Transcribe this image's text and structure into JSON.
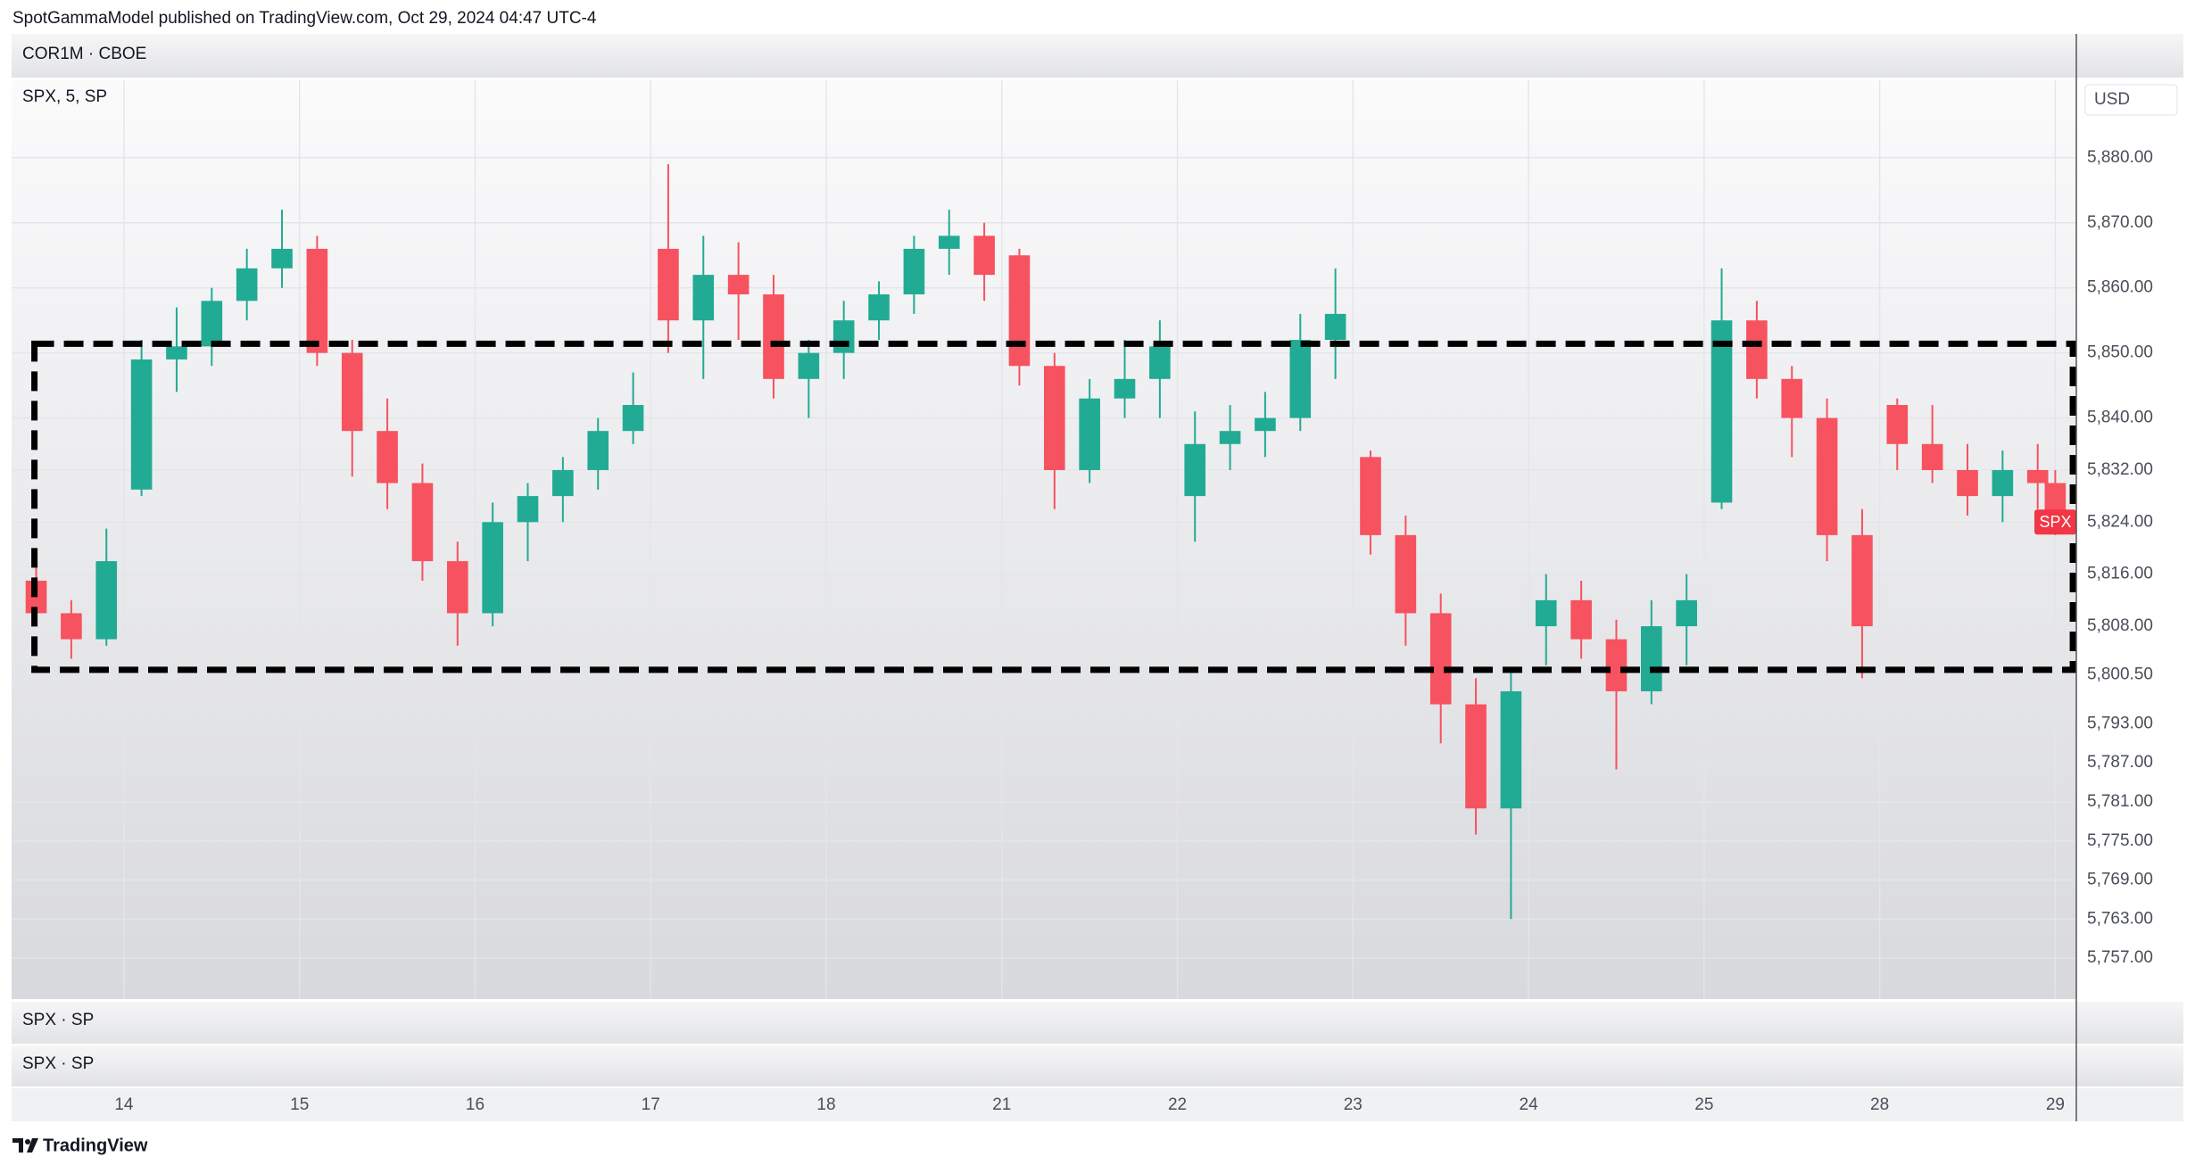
{
  "header": {
    "published": "SpotGammaModel published on TradingView.com, Oct 29, 2024 04:47 UTC-4",
    "top_panel": "COR1M · CBOE",
    "bottom_panels": [
      "SPX · SP",
      "SPX · SP"
    ],
    "footer": "TradingView"
  },
  "chart_data": {
    "type": "candlestick",
    "currency": "USD",
    "series": [
      {
        "name": "SPX, 5, SP",
        "up_color": "#22ab94",
        "down_color": "#f7525f",
        "x": [
          -0.5,
          -0.3,
          -0.1,
          0.1,
          0.3,
          0.5,
          0.7,
          0.9,
          1.1,
          1.3,
          1.5,
          1.7,
          1.9,
          2.1,
          2.3,
          2.5,
          2.7,
          2.9,
          3.1,
          3.3,
          3.5,
          3.7,
          3.9,
          4.1,
          4.3,
          4.5,
          4.7,
          4.9,
          5.1,
          5.3,
          5.5,
          5.7,
          5.9,
          6.1,
          6.3,
          6.5,
          6.7,
          6.9,
          7.1,
          7.3,
          7.5,
          7.7,
          7.9,
          8.1,
          8.3,
          8.5,
          8.7,
          8.9,
          9.1,
          9.3,
          9.5,
          9.7,
          9.9,
          10.1,
          10.3,
          10.5,
          10.7,
          10.9,
          11.0
        ],
        "open": [
          5815,
          5810,
          5806,
          5829,
          5849,
          5851,
          5858,
          5863,
          5866,
          5850,
          5838,
          5830,
          5818,
          5810,
          5824,
          5828,
          5832,
          5838,
          5866,
          5855,
          5862,
          5859,
          5846,
          5850,
          5855,
          5859,
          5866,
          5868,
          5865,
          5848,
          5832,
          5843,
          5846,
          5828,
          5836,
          5838,
          5840,
          5852,
          5834,
          5822,
          5810,
          5796,
          5780,
          5808,
          5812,
          5806,
          5798,
          5808,
          5827,
          5855,
          5846,
          5840,
          5822,
          5842,
          5836,
          5832,
          5828,
          5832,
          5830
        ],
        "high": [
          5817,
          5812,
          5823,
          5852,
          5857,
          5860,
          5866,
          5872,
          5868,
          5852,
          5843,
          5833,
          5821,
          5827,
          5830,
          5834,
          5840,
          5847,
          5879,
          5868,
          5867,
          5862,
          5852,
          5858,
          5861,
          5868,
          5872,
          5870,
          5866,
          5850,
          5846,
          5852,
          5855,
          5841,
          5842,
          5844,
          5856,
          5863,
          5835,
          5825,
          5813,
          5800,
          5801,
          5816,
          5815,
          5809,
          5812,
          5816,
          5863,
          5858,
          5848,
          5843,
          5826,
          5843,
          5842,
          5836,
          5835,
          5836,
          5832
        ],
        "low": [
          5808,
          5803,
          5805,
          5828,
          5844,
          5848,
          5855,
          5860,
          5848,
          5831,
          5826,
          5815,
          5805,
          5808,
          5818,
          5824,
          5829,
          5836,
          5850,
          5846,
          5852,
          5843,
          5840,
          5846,
          5852,
          5856,
          5862,
          5858,
          5845,
          5826,
          5830,
          5840,
          5840,
          5821,
          5832,
          5834,
          5838,
          5846,
          5819,
          5805,
          5790,
          5776,
          5763,
          5802,
          5803,
          5786,
          5796,
          5802,
          5826,
          5843,
          5834,
          5818,
          5800,
          5832,
          5830,
          5825,
          5824,
          5826,
          5822
        ],
        "close": [
          5810,
          5806,
          5818,
          5849,
          5851,
          5858,
          5863,
          5866,
          5850,
          5838,
          5830,
          5818,
          5810,
          5824,
          5828,
          5832,
          5838,
          5842,
          5855,
          5862,
          5859,
          5846,
          5850,
          5855,
          5859,
          5866,
          5868,
          5862,
          5848,
          5832,
          5843,
          5846,
          5851,
          5836,
          5838,
          5840,
          5852,
          5856,
          5822,
          5810,
          5796,
          5780,
          5798,
          5812,
          5806,
          5798,
          5808,
          5812,
          5855,
          5846,
          5840,
          5822,
          5808,
          5836,
          5832,
          5828,
          5832,
          5830,
          5824
        ]
      }
    ],
    "xlim": [
      -0.64,
      11.12
    ],
    "xticks": [
      {
        "value": 0,
        "label": "14"
      },
      {
        "value": 1,
        "label": "15"
      },
      {
        "value": 2,
        "label": "16"
      },
      {
        "value": 3,
        "label": "17"
      },
      {
        "value": 4,
        "label": "18"
      },
      {
        "value": 5,
        "label": "21"
      },
      {
        "value": 6,
        "label": "22"
      },
      {
        "value": 7,
        "label": "23"
      },
      {
        "value": 8,
        "label": "24"
      },
      {
        "value": 9,
        "label": "25"
      },
      {
        "value": 10,
        "label": "28"
      },
      {
        "value": 11,
        "label": "29"
      }
    ],
    "ylim": [
      5750.7,
      5891.9
    ],
    "yticks": [
      {
        "value": 5880,
        "label": "5,880.00"
      },
      {
        "value": 5870,
        "label": "5,870.00"
      },
      {
        "value": 5860,
        "label": "5,860.00"
      },
      {
        "value": 5850,
        "label": "5,850.00"
      },
      {
        "value": 5840,
        "label": "5,840.00"
      },
      {
        "value": 5832,
        "label": "5,832.00"
      },
      {
        "value": 5824,
        "label": "5,824.00"
      },
      {
        "value": 5816,
        "label": "5,816.00"
      },
      {
        "value": 5808,
        "label": "5,808.00"
      },
      {
        "value": 5800.5,
        "label": "5,800.50"
      },
      {
        "value": 5793,
        "label": "5,793.00"
      },
      {
        "value": 5787,
        "label": "5,787.00"
      },
      {
        "value": 5781,
        "label": "5,781.00"
      },
      {
        "value": 5775,
        "label": "5,775.00"
      },
      {
        "value": 5769,
        "label": "5,769.00"
      },
      {
        "value": 5763,
        "label": "5,763.00"
      },
      {
        "value": 5757,
        "label": "5,757.00"
      }
    ],
    "grid": true,
    "box": {
      "x": [
        -0.51,
        11.1
      ],
      "y": [
        5801.3,
        5851.4
      ]
    },
    "last_label": {
      "text": "SPX",
      "value": 5824,
      "color": "#f23645"
    }
  }
}
